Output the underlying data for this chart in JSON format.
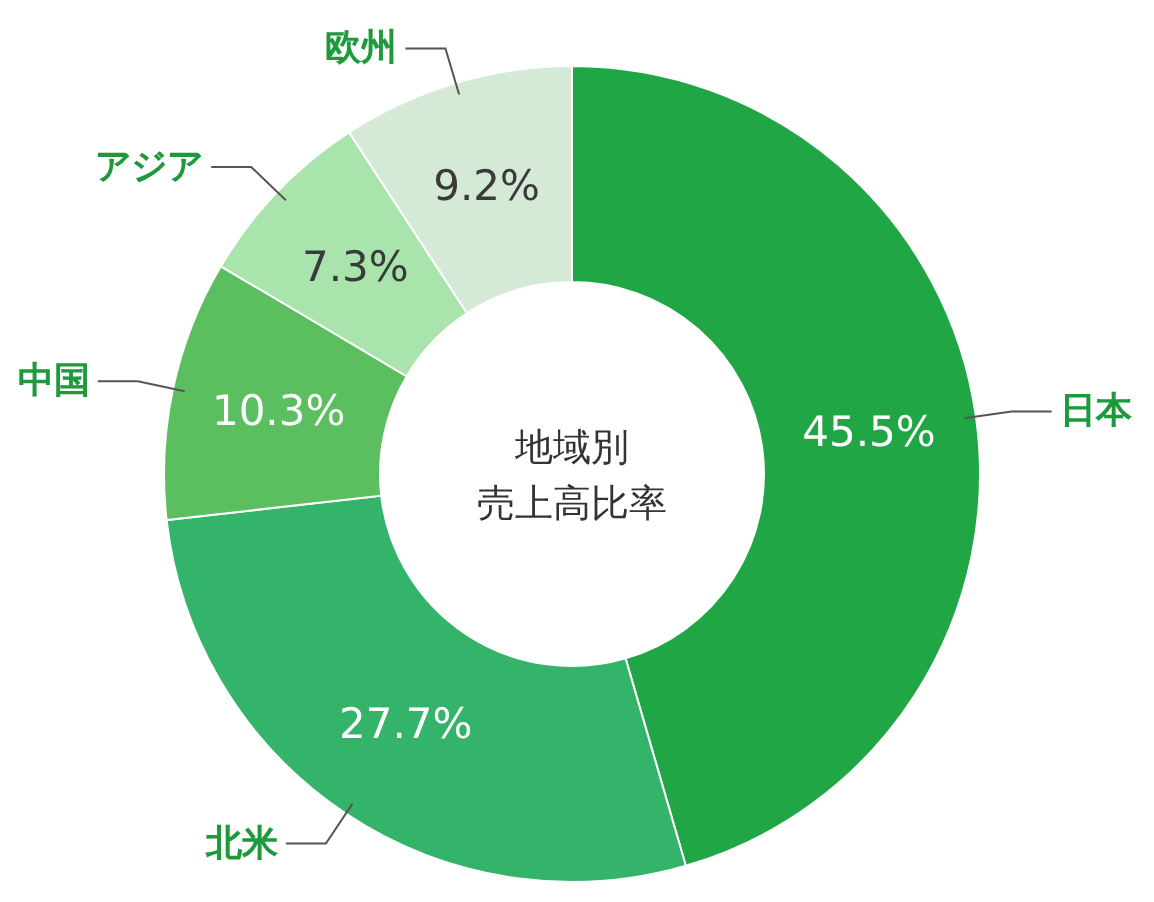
{
  "chart_data": {
    "type": "donut",
    "title": "地域別売上高比率",
    "categories": [
      "日本",
      "北米",
      "中国",
      "アジア",
      "欧州"
    ],
    "values": [
      45.5,
      27.7,
      10.3,
      7.3,
      9.2
    ],
    "colors": [
      "#21a645",
      "#34b36a",
      "#5bbf5f",
      "#a8e4ac",
      "#d5e9d7"
    ],
    "value_labels": [
      "45.5%",
      "27.7%",
      "10.3%",
      "7.3%",
      "9.2%"
    ]
  }
}
